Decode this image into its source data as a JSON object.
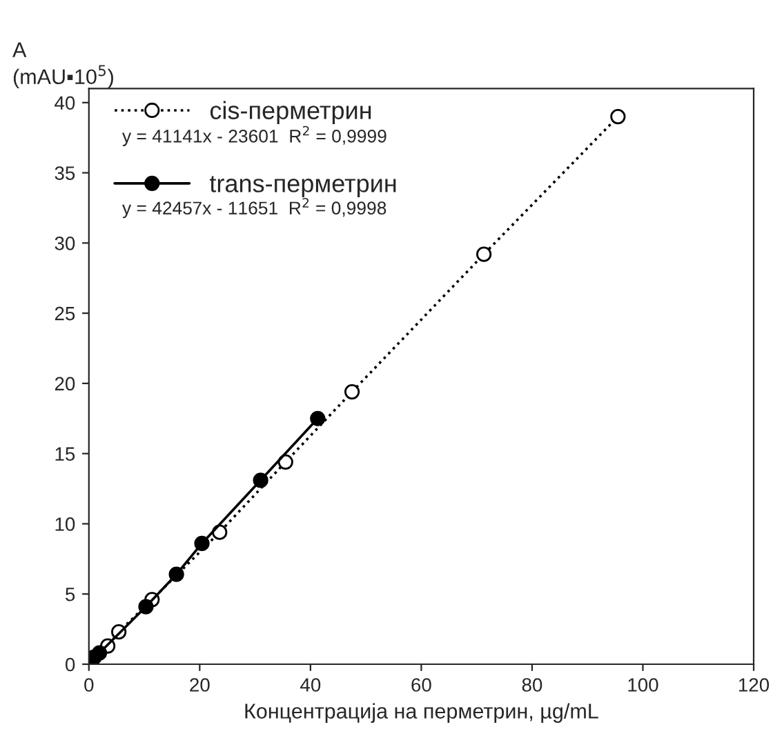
{
  "chart_data": {
    "type": "line",
    "xlabel": "Концентрација на перметрин, µg/mL",
    "ylabel": "A\n(mAU▪10$^{5}$)",
    "xlim": [
      0,
      120
    ],
    "xticks": [
      0,
      20,
      40,
      60,
      80,
      100,
      120
    ],
    "ylim": [
      0,
      41
    ],
    "yticks": [
      0,
      5,
      10,
      15,
      20,
      25,
      30,
      35,
      40
    ],
    "grid": false,
    "legend": "top left",
    "series": [
      {
        "name": "cis-перметрин",
        "color": "#000000",
        "marker": "circle",
        "line_style": "dotted",
        "x": [
          1.0,
          3.4,
          5.4,
          11.4,
          23.6,
          35.5,
          47.5,
          71.3,
          95.5
        ],
        "values": [
          0.5,
          1.3,
          2.3,
          4.6,
          9.4,
          14.4,
          19.4,
          29.2,
          39.0
        ]
      },
      {
        "name": "trans-перметрин",
        "color": "#000000",
        "marker": "circle",
        "line_style": "solid",
        "x": [
          0.9,
          1.9,
          10.3,
          15.8,
          20.4,
          31.0,
          41.3
        ],
        "values": [
          0.5,
          0.8,
          4.1,
          6.4,
          8.6,
          13.1,
          17.5
        ]
      }
    ],
    "annotations": [
      "y = 41141x - 23601  R$^{2}$ = 0,9999",
      "y = 42457x - 11651  R$^{2}$ = 0,9998"
    ]
  }
}
